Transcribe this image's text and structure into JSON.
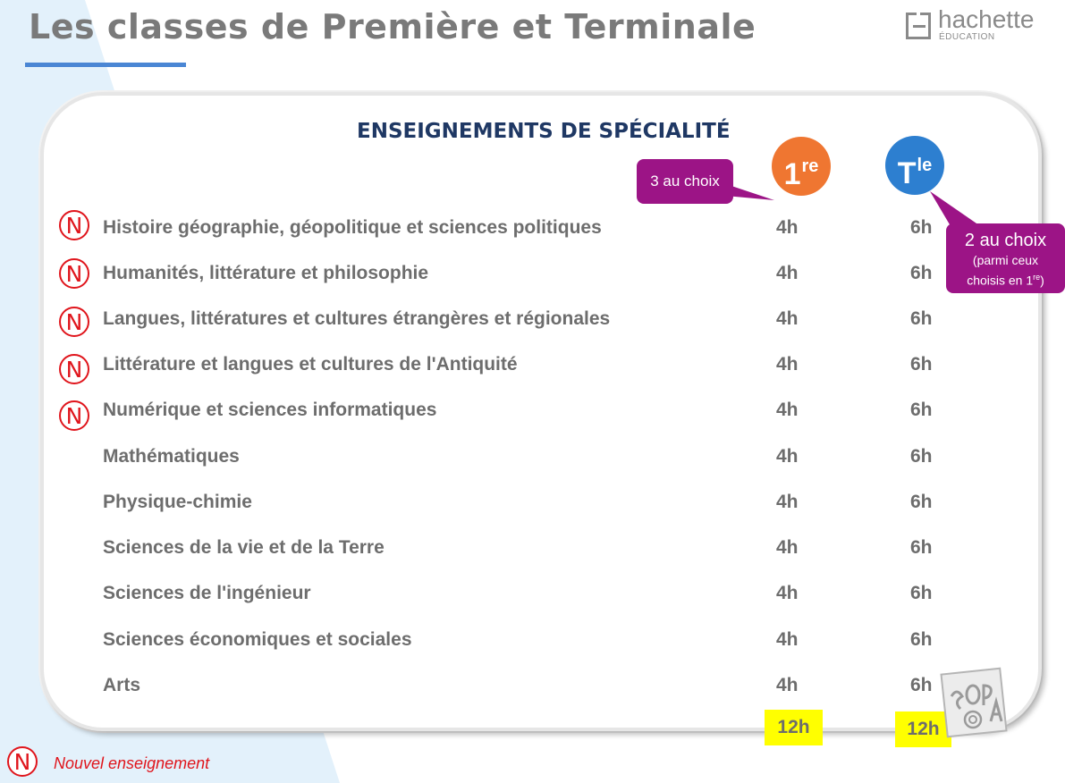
{
  "page": {
    "title": "Les classes de Première et Terminale",
    "logo": {
      "name": "hachette",
      "sub": "ÉDUCATION"
    }
  },
  "section": {
    "title": "ENSEIGNEMENTS DE SPÉCIALITÉ",
    "badge_1re": {
      "main": "1",
      "sup": "re",
      "color": "#ef7631"
    },
    "badge_tle": {
      "main": "T",
      "sup": "le",
      "color": "#2d7fd0"
    },
    "callout_1re": "3 au choix",
    "callout_tle": {
      "main": "2 au choix",
      "line1": "(parmi ceux",
      "line2": "choisis en 1",
      "line2_sup": "re",
      "line2_end": ")"
    }
  },
  "new_marker": "N",
  "subjects": [
    {
      "label": "Histoire géographie, géopolitique et sciences politiques",
      "h1re": "4h",
      "htle": "6h",
      "new": true
    },
    {
      "label": "Humanités, littérature et philosophie",
      "h1re": "4h",
      "htle": "6h",
      "new": true
    },
    {
      "label": "Langues, littératures et cultures étrangères et régionales",
      "h1re": "4h",
      "htle": "6h",
      "new": true
    },
    {
      "label": "Littérature et langues et cultures de l'Antiquité",
      "h1re": "4h",
      "htle": "6h",
      "new": true
    },
    {
      "label": "Numérique et sciences informatiques",
      "h1re": "4h",
      "htle": "6h",
      "new": true
    },
    {
      "label": "Mathématiques",
      "h1re": "4h",
      "htle": "6h",
      "new": false
    },
    {
      "label": "Physique-chimie",
      "h1re": "4h",
      "htle": "6h",
      "new": false
    },
    {
      "label": "Sciences de la vie et de la Terre",
      "h1re": "4h",
      "htle": "6h",
      "new": false
    },
    {
      "label": "Sciences de l'ingénieur",
      "h1re": "4h",
      "htle": "6h",
      "new": false
    },
    {
      "label": "Sciences économiques et sociales",
      "h1re": "4h",
      "htle": "6h",
      "new": false
    },
    {
      "label": "Arts",
      "h1re": "4h",
      "htle": "6h",
      "new": false
    }
  ],
  "totals": {
    "1re": "12h",
    "tle": "12h"
  },
  "legend": {
    "marker": "N",
    "text": "Nouvel enseignement"
  },
  "colors": {
    "accent_blue": "#4a86d4",
    "title_navy": "#1f3864",
    "callout_purple": "#9c1486",
    "new_red": "#e0151c",
    "highlight": "#ffff00"
  }
}
